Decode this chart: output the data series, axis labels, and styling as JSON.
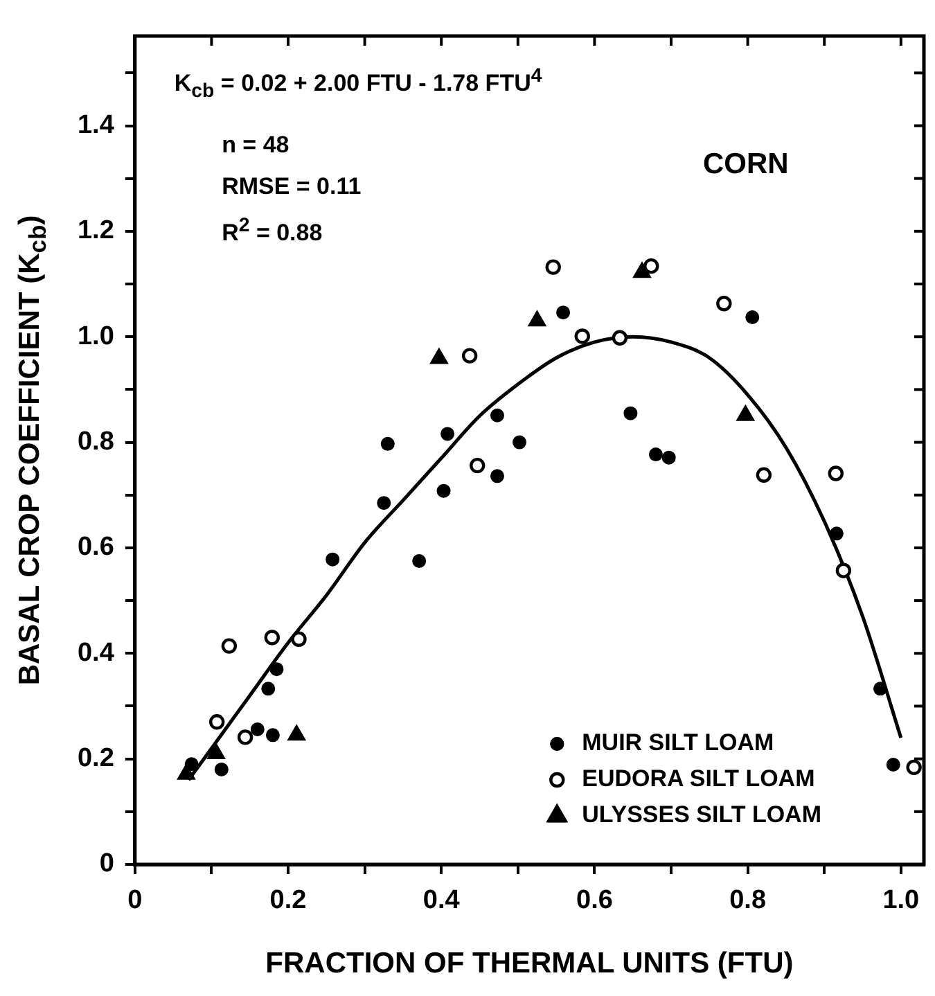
{
  "chart_data": {
    "type": "scatter",
    "xlabel": "FRACTION OF THERMAL UNITS (FTU)",
    "ylabel": "BASAL CROP COEFFICIENT (K$_{cb}$)",
    "annotations": [
      "K$_{cb}$ = 0.02 + 2.00 FTU - 1.78 FTU$^{4}$",
      "n = 48",
      "RMSE = 0.11",
      "R$^{2}$ = 0.88",
      "CORN"
    ],
    "xlim": [
      0,
      1.03
    ],
    "ylim": [
      0,
      1.57
    ],
    "xticks": [
      0,
      {
        "value": 0.1,
        "label": null
      },
      0.2,
      {
        "value": 0.3,
        "label": null
      },
      0.4,
      {
        "value": 0.5,
        "label": null
      },
      0.6,
      {
        "value": 0.7,
        "label": null
      },
      0.8,
      {
        "value": 0.9,
        "label": null
      },
      {
        "value": 1.0,
        "label": "1.0"
      }
    ],
    "yticks": [
      0,
      {
        "value": 0.1,
        "label": null
      },
      0.2,
      {
        "value": 0.3,
        "label": null
      },
      0.4,
      {
        "value": 0.5,
        "label": null
      },
      0.6,
      {
        "value": 0.7,
        "label": null
      },
      0.8,
      {
        "value": 0.9,
        "label": null
      },
      {
        "value": 1.0,
        "label": "1.0"
      },
      {
        "value": 1.1,
        "label": null
      },
      1.2,
      {
        "value": 1.3,
        "label": null
      },
      1.4,
      {
        "value": 1.5,
        "label": null
      }
    ],
    "grid": false,
    "legend": "bottom right",
    "series": [
      {
        "name": "MUIR SILT LOAM",
        "color": "#000000",
        "marker": "circle",
        "x": [
          0.074,
          0.113,
          0.16,
          0.18,
          0.174,
          0.185,
          0.258,
          0.325,
          0.33,
          0.371,
          0.403,
          0.408,
          0.473,
          0.473,
          0.502,
          0.559,
          0.647,
          0.68,
          0.697,
          0.806,
          0.916,
          0.973,
          0.99
        ],
        "values": [
          0.19,
          0.18,
          0.256,
          0.245,
          0.333,
          0.37,
          0.578,
          0.685,
          0.797,
          0.575,
          0.708,
          0.816,
          0.736,
          0.851,
          0.8,
          1.046,
          0.855,
          0.777,
          0.771,
          1.037,
          0.627,
          0.333,
          0.189
        ]
      },
      {
        "name": "EUDORA SILT LOAM",
        "color": "#000000",
        "marker": "circle-open",
        "x": [
          0.107,
          0.123,
          0.144,
          0.179,
          0.214,
          0.437,
          0.447,
          0.546,
          0.584,
          0.633,
          0.674,
          0.769,
          0.821,
          0.915,
          0.925,
          1.017
        ],
        "values": [
          0.27,
          0.414,
          0.241,
          0.43,
          0.427,
          0.964,
          0.756,
          1.132,
          1.001,
          0.998,
          1.134,
          1.063,
          0.738,
          0.741,
          0.557,
          0.184
        ]
      },
      {
        "name": "ULYSSES SILT LOAM",
        "color": "#000000",
        "marker": "triangle",
        "x": [
          0.067,
          0.106,
          0.211,
          0.397,
          0.525,
          0.662,
          0.797
        ],
        "values": [
          0.171,
          0.21,
          0.245,
          0.959,
          1.03,
          1.122,
          0.851
        ]
      },
      {
        "type": "line",
        "color": "#000000",
        "marker": "none",
        "line_style": "solid",
        "x": [
          0.07,
          0.1,
          0.15,
          0.2,
          0.25,
          0.3,
          0.35,
          0.4,
          0.45,
          0.5,
          0.55,
          0.6,
          0.65,
          0.7,
          0.75,
          0.8,
          0.85,
          0.9,
          0.95,
          1.0
        ],
        "values": [
          0.16,
          0.22,
          0.32,
          0.42,
          0.51,
          0.61,
          0.69,
          0.77,
          0.85,
          0.91,
          0.96,
          0.99,
          1.0,
          0.99,
          0.96,
          0.89,
          0.79,
          0.65,
          0.47,
          0.24
        ]
      }
    ]
  }
}
